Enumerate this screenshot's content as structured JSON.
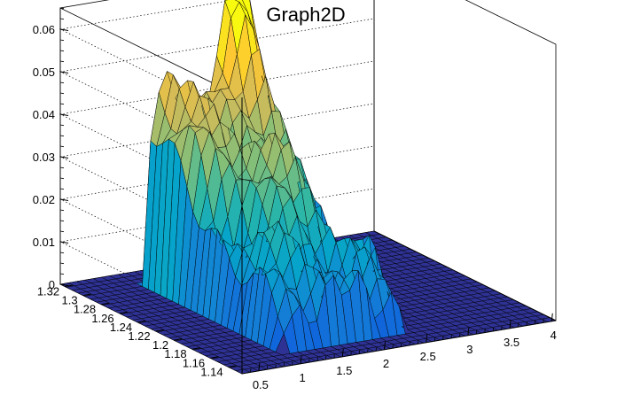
{
  "chart_data": {
    "type": "surface3d",
    "title": "Graph2D",
    "xlabel": "",
    "ylabel": "",
    "zlabel": "",
    "xlim": [
      0.3,
      4.05
    ],
    "ylim": [
      1.125,
      1.325
    ],
    "zlim": [
      0,
      0.065
    ],
    "x_ticks": [
      "0.5",
      "1",
      "1.5",
      "2",
      "2.5",
      "3",
      "3.5",
      "4"
    ],
    "x_tick_values": [
      0.5,
      1,
      1.5,
      2,
      2.5,
      3,
      3.5,
      4
    ],
    "y_ticks": [
      "1.14",
      "1.16",
      "1.18",
      "1.2",
      "1.22",
      "1.24",
      "1.26",
      "1.28",
      "1.3",
      "1.32"
    ],
    "y_tick_values": [
      1.14,
      1.16,
      1.18,
      1.2,
      1.22,
      1.24,
      1.26,
      1.28,
      1.3,
      1.32
    ],
    "z_ticks": [
      "0",
      "0.01",
      "0.02",
      "0.03",
      "0.04",
      "0.05",
      "0.06"
    ],
    "z_tick_values": [
      0,
      0.01,
      0.02,
      0.03,
      0.04,
      0.05,
      0.06
    ],
    "grid": true,
    "colormap": [
      "#352a87",
      "#0f5cdd",
      "#1481d6",
      "#06a4ca",
      "#2eb7a4",
      "#87bf77",
      "#d1bb59",
      "#fec832",
      "#f9fb0e"
    ],
    "surface": {
      "support_x": [
        1.05,
        2.55
      ],
      "support_y": [
        1.15,
        1.3
      ],
      "peaks": [
        {
          "x": 2.25,
          "y": 1.31,
          "z": 0.057
        },
        {
          "x": 1.3,
          "y": 1.3,
          "z": 0.044
        },
        {
          "x": 2.0,
          "y": 1.3,
          "z": 0.035
        },
        {
          "x": 1.7,
          "y": 1.23,
          "z": 0.032
        }
      ]
    }
  }
}
